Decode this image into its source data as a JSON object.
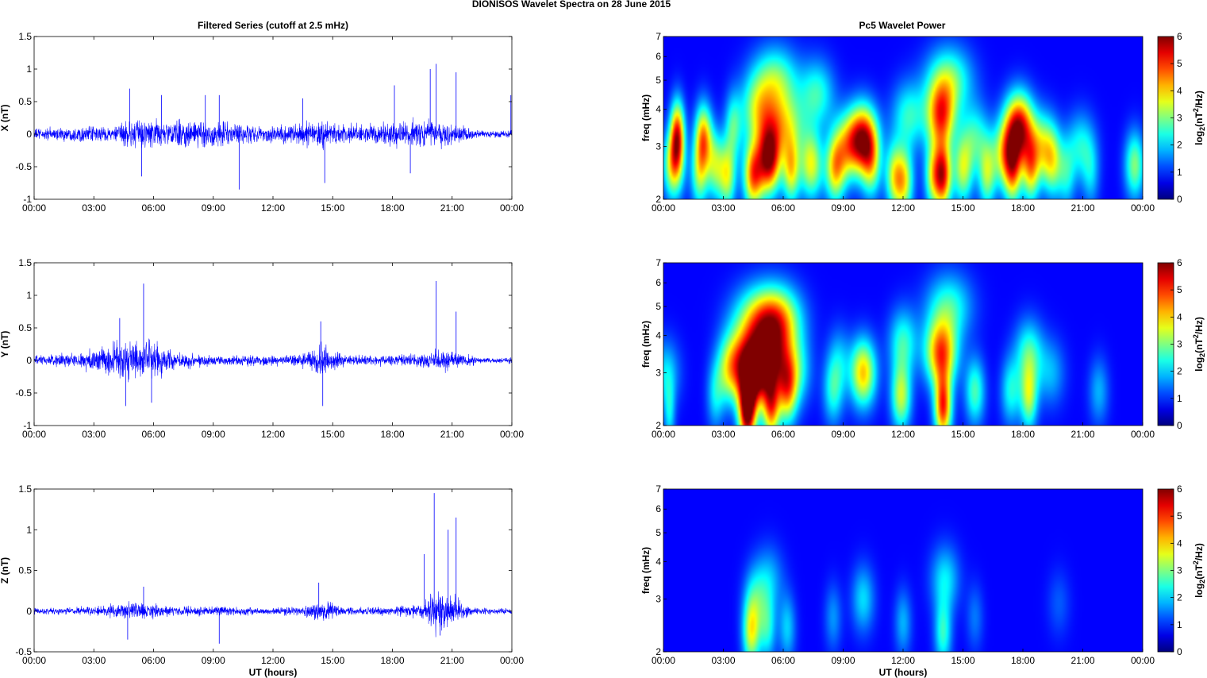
{
  "suptitle": "DIONISOS Wavelet Spectra on 28 June      2015",
  "left_title": "Filtered Series (cutoff at 2.5 mHz)",
  "right_title": "Pc5 Wavelet Power",
  "xlabel": "UT (hours)",
  "freq_label": "freq (mHz)",
  "colorbar_label": "log2(nT2/Hz)",
  "colorbar_parts": {
    "base": "log",
    "sub": "2",
    "mid": "(nT",
    "sup": "2",
    "tail": "/Hz)"
  },
  "colors": {
    "series": "#0000ff",
    "wavelet_background": "#00008f"
  },
  "time_ticks": [
    "00:00",
    "03:00",
    "06:00",
    "09:00",
    "12:00",
    "15:00",
    "18:00",
    "21:00",
    "00:00"
  ],
  "freq_ticks": [
    "2",
    "3",
    "4",
    "5",
    "6",
    "7"
  ],
  "colorbar_ticks": [
    "0",
    "1",
    "2",
    "3",
    "4",
    "5",
    "6"
  ],
  "chart_data": [
    {
      "type": "line",
      "component": "X",
      "ylabel": "X (nT)",
      "x_range_hours": [
        0,
        24
      ],
      "ylim": [
        -1,
        1.5
      ],
      "ytick_labels": [
        "-1",
        "-0.5",
        "0",
        "0.5",
        "1",
        "1.5"
      ],
      "noise_envelope": [
        [
          0,
          0.12
        ],
        [
          1,
          0.14
        ],
        [
          2,
          0.15
        ],
        [
          3,
          0.16
        ],
        [
          4,
          0.15
        ],
        [
          4.8,
          0.3
        ],
        [
          5.5,
          0.32
        ],
        [
          6.5,
          0.3
        ],
        [
          8,
          0.27
        ],
        [
          9.5,
          0.3
        ],
        [
          10.5,
          0.2
        ],
        [
          12,
          0.18
        ],
        [
          13.5,
          0.24
        ],
        [
          14.5,
          0.3
        ],
        [
          15.5,
          0.2
        ],
        [
          17,
          0.22
        ],
        [
          18,
          0.28
        ],
        [
          19.5,
          0.3
        ],
        [
          20.5,
          0.26
        ],
        [
          21.5,
          0.22
        ],
        [
          22,
          0.09
        ],
        [
          24,
          0.07
        ]
      ],
      "peaks": [
        [
          4.8,
          0.7
        ],
        [
          5.4,
          -0.65
        ],
        [
          6.4,
          0.6
        ],
        [
          8.6,
          0.6
        ],
        [
          9.3,
          0.6
        ],
        [
          10.3,
          -0.85
        ],
        [
          13.5,
          0.55
        ],
        [
          14.6,
          -0.75
        ],
        [
          18.1,
          0.75
        ],
        [
          18.9,
          -0.6
        ],
        [
          19.9,
          1.0
        ],
        [
          20.2,
          1.08
        ],
        [
          21.2,
          0.95
        ],
        [
          23.95,
          0.6
        ]
      ]
    },
    {
      "type": "line",
      "component": "Y",
      "ylabel": "Y (nT)",
      "x_range_hours": [
        0,
        24
      ],
      "ylim": [
        -1,
        1.5
      ],
      "ytick_labels": [
        "-1",
        "-0.5",
        "0",
        "0.5",
        "1",
        "1.5"
      ],
      "noise_envelope": [
        [
          0,
          0.1
        ],
        [
          2,
          0.15
        ],
        [
          3,
          0.25
        ],
        [
          4,
          0.4
        ],
        [
          5,
          0.45
        ],
        [
          6,
          0.4
        ],
        [
          7,
          0.2
        ],
        [
          9,
          0.1
        ],
        [
          10.5,
          0.12
        ],
        [
          12,
          0.1
        ],
        [
          13.5,
          0.15
        ],
        [
          14.5,
          0.35
        ],
        [
          15.5,
          0.12
        ],
        [
          17,
          0.1
        ],
        [
          18.5,
          0.12
        ],
        [
          19.5,
          0.15
        ],
        [
          20.5,
          0.25
        ],
        [
          21.5,
          0.15
        ],
        [
          22.5,
          0.06
        ],
        [
          24,
          0.06
        ]
      ],
      "peaks": [
        [
          4.3,
          0.65
        ],
        [
          4.6,
          -0.7
        ],
        [
          5.5,
          1.18
        ],
        [
          5.9,
          -0.65
        ],
        [
          14.4,
          0.6
        ],
        [
          14.5,
          -0.7
        ],
        [
          20.2,
          1.22
        ],
        [
          21.2,
          0.75
        ]
      ]
    },
    {
      "type": "line",
      "component": "Z",
      "ylabel": "Z (nT)",
      "x_range_hours": [
        0,
        24
      ],
      "ylim": [
        -0.5,
        1.5
      ],
      "ytick_labels": [
        "-0.5",
        "0",
        "0.5",
        "1",
        "1.5"
      ],
      "noise_envelope": [
        [
          0,
          0.05
        ],
        [
          3,
          0.07
        ],
        [
          4,
          0.12
        ],
        [
          5,
          0.16
        ],
        [
          6,
          0.12
        ],
        [
          7,
          0.08
        ],
        [
          9,
          0.08
        ],
        [
          12,
          0.06
        ],
        [
          13.5,
          0.08
        ],
        [
          14.5,
          0.18
        ],
        [
          15.5,
          0.07
        ],
        [
          18,
          0.07
        ],
        [
          19.5,
          0.12
        ],
        [
          20.2,
          0.35
        ],
        [
          21.2,
          0.25
        ],
        [
          22,
          0.06
        ],
        [
          24,
          0.05
        ]
      ],
      "peaks": [
        [
          4.7,
          -0.35
        ],
        [
          5.5,
          0.3
        ],
        [
          9.3,
          -0.4
        ],
        [
          14.3,
          0.35
        ],
        [
          19.6,
          0.7
        ],
        [
          20.1,
          1.45
        ],
        [
          20.8,
          1.0
        ],
        [
          21.2,
          1.15
        ],
        [
          20.4,
          -0.3
        ]
      ]
    },
    {
      "type": "heatmap",
      "component": "X",
      "ylabel": "freq (mHz)",
      "y_range_mHz": [
        2,
        7
      ],
      "y_scale": "log",
      "zlim": [
        0,
        6
      ],
      "blobs": [
        [
          0.5,
          2.6,
          3.5,
          0.35,
          1.0
        ],
        [
          0.7,
          3.3,
          4.5,
          0.25,
          1.0
        ],
        [
          1.8,
          2.4,
          2.4,
          0.3,
          1.0
        ],
        [
          2.0,
          3.2,
          4.0,
          0.3,
          1.0
        ],
        [
          2.6,
          2.6,
          2.5,
          0.3,
          1.0
        ],
        [
          3.2,
          2.4,
          3.0,
          0.3,
          1.0
        ],
        [
          3.5,
          3.5,
          2.0,
          0.3,
          1.0
        ],
        [
          4.5,
          2.4,
          4.3,
          0.35,
          1.0
        ],
        [
          4.7,
          4.0,
          2.2,
          0.6,
          1.0
        ],
        [
          5.3,
          2.7,
          5.3,
          0.4,
          1.0
        ],
        [
          5.6,
          5.0,
          2.5,
          0.8,
          1.0
        ],
        [
          5.9,
          3.5,
          3.0,
          0.8,
          1.0
        ],
        [
          6.4,
          2.5,
          3.2,
          0.3,
          1.0
        ],
        [
          7.4,
          2.6,
          3.2,
          0.4,
          1.0
        ],
        [
          7.7,
          4.5,
          2.0,
          0.6,
          1.0
        ],
        [
          8.6,
          2.5,
          3.3,
          0.35,
          1.0
        ],
        [
          9.2,
          3.0,
          3.0,
          0.5,
          1.0
        ],
        [
          10.0,
          3.2,
          5.0,
          0.5,
          1.0
        ],
        [
          10.4,
          2.6,
          2.5,
          0.35,
          1.0
        ],
        [
          11.5,
          2.4,
          2.2,
          0.3,
          1.0
        ],
        [
          12.0,
          2.3,
          3.5,
          0.35,
          1.0
        ],
        [
          12.3,
          3.8,
          2.0,
          0.6,
          1.0
        ],
        [
          13.5,
          2.4,
          2.8,
          0.3,
          1.0
        ],
        [
          13.9,
          3.8,
          4.3,
          0.5,
          1.0
        ],
        [
          14.0,
          2.4,
          4.8,
          0.3,
          1.0
        ],
        [
          14.3,
          5.0,
          2.5,
          0.8,
          1.0
        ],
        [
          15.0,
          2.5,
          2.8,
          0.35,
          1.0
        ],
        [
          15.6,
          3.2,
          2.0,
          0.5,
          1.0
        ],
        [
          16.2,
          2.4,
          2.5,
          0.3,
          1.0
        ],
        [
          17.2,
          2.8,
          3.5,
          0.5,
          1.0
        ],
        [
          17.5,
          2.4,
          2.5,
          0.3,
          1.0
        ],
        [
          17.8,
          3.5,
          5.2,
          0.5,
          1.0
        ],
        [
          18.4,
          2.5,
          3.0,
          0.3,
          1.0
        ],
        [
          19.0,
          3.0,
          2.8,
          0.5,
          1.0
        ],
        [
          19.5,
          2.6,
          2.2,
          0.35,
          1.0
        ],
        [
          20.2,
          2.4,
          1.5,
          0.3,
          1.0
        ],
        [
          20.9,
          3.0,
          1.8,
          0.5,
          1.0
        ],
        [
          21.4,
          2.4,
          1.2,
          0.3,
          1.0
        ],
        [
          23.6,
          2.6,
          2.6,
          0.35,
          1.0
        ]
      ]
    },
    {
      "type": "heatmap",
      "component": "Y",
      "ylabel": "freq (mHz)",
      "y_range_mHz": [
        2,
        7
      ],
      "y_scale": "log",
      "zlim": [
        0,
        6
      ],
      "blobs": [
        [
          0.1,
          3.0,
          1.5,
          0.5,
          1.0
        ],
        [
          0.3,
          2.2,
          1.5,
          0.2,
          1.0
        ],
        [
          2.6,
          2.5,
          1.4,
          0.3,
          1.0
        ],
        [
          3.2,
          3.0,
          1.5,
          0.4,
          1.0
        ],
        [
          3.8,
          3.2,
          3.0,
          0.6,
          1.0
        ],
        [
          4.2,
          2.2,
          5.6,
          0.3,
          1.0
        ],
        [
          4.5,
          2.8,
          3.3,
          0.5,
          1.0
        ],
        [
          4.8,
          4.5,
          3.0,
          0.9,
          1.0
        ],
        [
          5.2,
          3.3,
          5.0,
          0.8,
          1.0
        ],
        [
          5.4,
          2.3,
          4.0,
          0.3,
          1.0
        ],
        [
          5.8,
          4.5,
          3.0,
          0.8,
          1.0
        ],
        [
          6.2,
          2.6,
          3.3,
          0.35,
          1.0
        ],
        [
          6.7,
          3.0,
          1.5,
          0.5,
          1.0
        ],
        [
          8.5,
          2.6,
          1.8,
          0.35,
          1.0
        ],
        [
          8.8,
          3.3,
          1.2,
          0.4,
          1.0
        ],
        [
          10.0,
          3.0,
          3.8,
          0.45,
          1.0
        ],
        [
          11.9,
          2.5,
          3.0,
          0.35,
          1.0
        ],
        [
          12.0,
          3.8,
          2.0,
          0.5,
          1.0
        ],
        [
          13.9,
          3.5,
          4.5,
          0.55,
          1.0
        ],
        [
          14.0,
          2.3,
          4.8,
          0.3,
          1.0
        ],
        [
          14.3,
          5.0,
          2.0,
          0.8,
          1.0
        ],
        [
          15.6,
          2.6,
          2.2,
          0.35,
          1.0
        ],
        [
          17.4,
          2.6,
          1.8,
          0.35,
          1.0
        ],
        [
          18.3,
          2.5,
          2.8,
          0.3,
          1.0
        ],
        [
          18.3,
          3.5,
          2.0,
          0.5,
          1.0
        ],
        [
          19.4,
          3.0,
          1.2,
          0.5,
          1.0
        ],
        [
          21.8,
          2.6,
          1.2,
          0.35,
          1.0
        ]
      ]
    },
    {
      "type": "heatmap",
      "component": "Z",
      "ylabel": "freq (mHz)",
      "y_range_mHz": [
        2,
        7
      ],
      "y_scale": "log",
      "zlim": [
        0,
        6
      ],
      "blobs": [
        [
          4.4,
          2.3,
          3.0,
          0.3,
          1.0
        ],
        [
          4.6,
          3.0,
          1.5,
          0.4,
          1.0
        ],
        [
          5.2,
          2.4,
          1.8,
          0.3,
          1.0
        ],
        [
          5.3,
          3.5,
          1.2,
          0.5,
          1.0
        ],
        [
          6.2,
          2.4,
          1.4,
          0.3,
          1.0
        ],
        [
          8.5,
          2.6,
          1.0,
          0.3,
          1.0
        ],
        [
          10.0,
          3.0,
          1.5,
          0.4,
          1.0
        ],
        [
          12.0,
          2.5,
          1.2,
          0.3,
          1.0
        ],
        [
          14.0,
          2.3,
          2.0,
          0.3,
          1.0
        ],
        [
          14.1,
          3.5,
          1.6,
          0.5,
          1.0
        ],
        [
          15.6,
          2.6,
          0.8,
          0.3,
          1.0
        ],
        [
          19.8,
          2.9,
          0.6,
          0.4,
          1.0
        ]
      ]
    }
  ]
}
